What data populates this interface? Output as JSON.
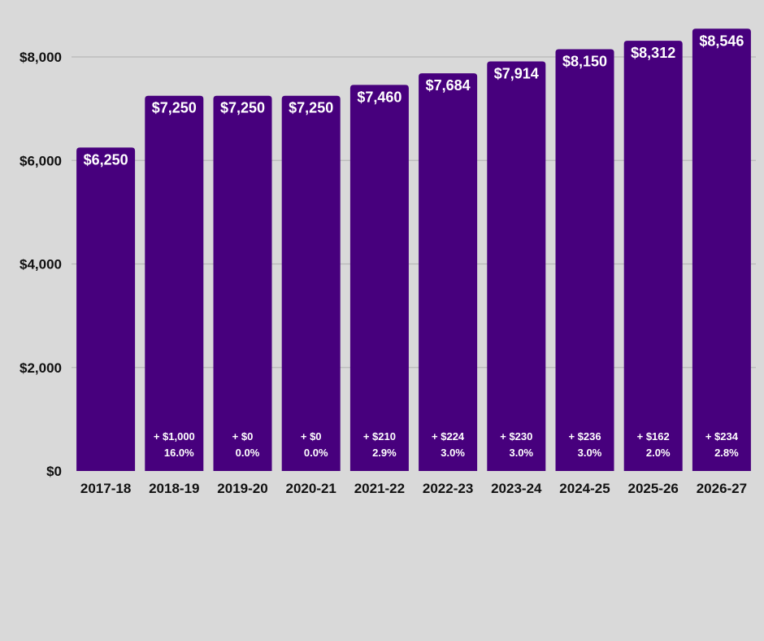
{
  "chart_data": {
    "type": "bar",
    "categories": [
      "2017-18",
      "2018-19",
      "2019-20",
      "2020-21",
      "2021-22",
      "2022-23",
      "2023-24",
      "2024-25",
      "2025-26",
      "2026-27"
    ],
    "values": [
      6250,
      7250,
      7250,
      7250,
      7460,
      7684,
      7914,
      8150,
      8312,
      8546
    ],
    "value_labels": [
      "$6,250",
      "$7,250",
      "$7,250",
      "$7,250",
      "$7,460",
      "$7,684",
      "$7,914",
      "$8,150",
      "$8,312",
      "$8,546"
    ],
    "change_labels": [
      "",
      "+ $1,000",
      "+ $0",
      "+ $0",
      "+ $210",
      "+ $224",
      "+ $230",
      "+ $236",
      "+ $162",
      "+ $234"
    ],
    "percent_labels": [
      "",
      "16.0%",
      "0.0%",
      "0.0%",
      "2.9%",
      "3.0%",
      "3.0%",
      "3.0%",
      "2.0%",
      "2.8%"
    ],
    "yticks": [
      0,
      2000,
      4000,
      6000,
      8000
    ],
    "ytick_labels": [
      "$0",
      "$2,000",
      "$4,000",
      "$6,000",
      "$8,000"
    ],
    "ylim": [
      0,
      8500
    ],
    "grid": true,
    "colors": {
      "bar": "#47007d",
      "grid": "#b8b8b8",
      "background": "#d9d9d9"
    }
  }
}
